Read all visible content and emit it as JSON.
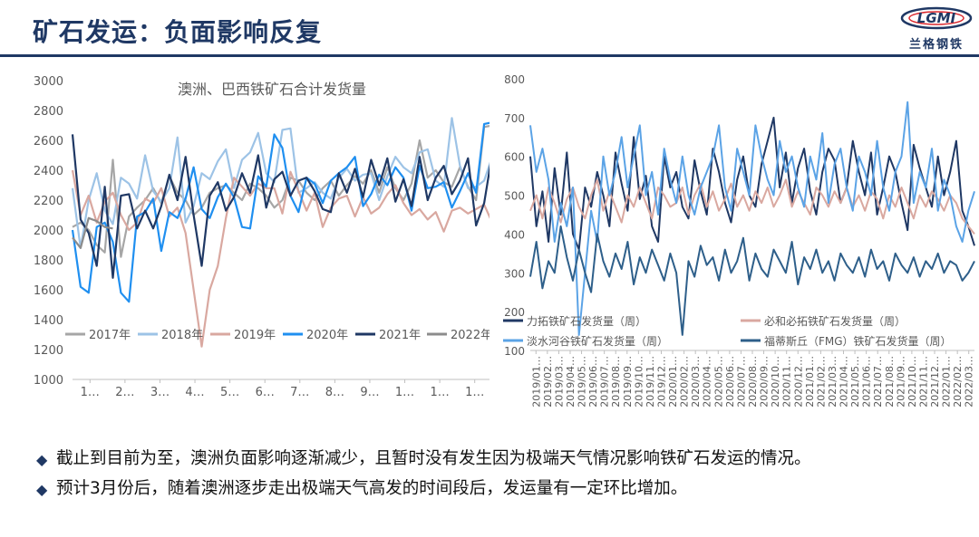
{
  "page": {
    "title": "矿石发运：负面影响反复",
    "logo_mark": "LGMI",
    "logo_text": "兰格钢铁"
  },
  "bullets": [
    {
      "icon": "diamond-icon",
      "text": "截止到目前为至，澳洲负面影响逐渐减少，且暂时没有发生因为极端天气情况影响铁矿石发运的情况。"
    },
    {
      "icon": "diamond-icon",
      "text": "预计3月份后，随着澳洲逐步走出极端天气高发的时间段后，发运量有一定环比增加。"
    }
  ],
  "chart_data": [
    {
      "type": "line",
      "title": "澳洲、巴西铁矿石合计发货量",
      "xlabel": "",
      "ylabel": "",
      "ylim": [
        1000,
        3000
      ],
      "yticks": [
        1000,
        1200,
        1400,
        1600,
        1800,
        2000,
        2200,
        2400,
        2600,
        2800,
        3000
      ],
      "x_tick_labels": [
        "1…",
        "2…",
        "3…",
        "4…",
        "5…",
        "6…",
        "7…",
        "8…",
        "9…",
        "1…",
        "1…",
        "1…"
      ],
      "grid": false,
      "legend": "bottom",
      "series": [
        {
          "name": "2017年",
          "color": "#a6a6a6",
          "values": [
            2020,
            2050,
            2000,
            1900,
            1850,
            2470,
            1820,
            2090,
            2150,
            2200,
            2280,
            2180,
            2360,
            2250,
            2200,
            2100,
            2150,
            2250,
            2280,
            2300,
            2250,
            2200,
            2310,
            2280,
            2230,
            2150,
            2200,
            2350,
            2330,
            2250,
            2200,
            2280,
            2330,
            2230,
            2300,
            2360,
            2310,
            2400,
            2250,
            2420,
            2280,
            2200,
            2310,
            2600,
            2350,
            2400,
            2320,
            2290,
            2420,
            2290,
            2200,
            2690,
            2700
          ]
        },
        {
          "name": "2018年",
          "color": "#9dc3e6",
          "values": [
            2280,
            1880,
            2200,
            2380,
            2130,
            2040,
            2350,
            2310,
            2210,
            2500,
            2260,
            2190,
            2280,
            2620,
            2050,
            2160,
            2380,
            2340,
            2460,
            2540,
            2280,
            2470,
            2520,
            2650,
            2380,
            2320,
            2670,
            2680,
            2250,
            2280,
            2320,
            2250,
            2210,
            2350,
            2410,
            2330,
            2370,
            2380,
            2200,
            2360,
            2490,
            2420,
            2380,
            2520,
            2540,
            2330,
            2290,
            2750,
            2430,
            2280,
            2290,
            2330,
            2490
          ]
        },
        {
          "name": "2019年",
          "color": "#d9a8a0",
          "values": [
            2400,
            2100,
            2230,
            2050,
            2190,
            2250,
            2100,
            2000,
            2050,
            2210,
            2180,
            2280,
            2090,
            2150,
            1980,
            1600,
            1220,
            1600,
            1760,
            2080,
            2350,
            2290,
            2230,
            2310,
            2280,
            2280,
            2110,
            2390,
            2260,
            2130,
            2250,
            2020,
            2150,
            2210,
            2230,
            2090,
            2220,
            2110,
            2150,
            2240,
            2300,
            2180,
            2100,
            2140,
            2070,
            2120,
            1990,
            2130,
            2150,
            2110,
            2140,
            2170,
            2050
          ]
        },
        {
          "name": "2020年",
          "color": "#1f8ff0",
          "values": [
            2000,
            1620,
            1580,
            2020,
            2050,
            1920,
            1580,
            1520,
            2090,
            2120,
            2210,
            1860,
            2120,
            2080,
            2210,
            2420,
            2140,
            2080,
            2220,
            2310,
            2220,
            2020,
            2010,
            2360,
            2290,
            2640,
            2550,
            2230,
            2120,
            2350,
            2310,
            2180,
            2330,
            2380,
            2420,
            2490,
            2160,
            2240,
            2370,
            2300,
            2420,
            2350,
            2130,
            2430,
            2280,
            2290,
            2320,
            2150,
            2260,
            2380,
            2250,
            2710,
            2720
          ]
        },
        {
          "name": "2021年",
          "color": "#1f3864",
          "values": [
            2640,
            2070,
            1980,
            1760,
            2290,
            1680,
            2230,
            2240,
            2010,
            2130,
            2010,
            2160,
            2370,
            2200,
            2490,
            2100,
            1760,
            2230,
            2320,
            2130,
            2220,
            2380,
            2250,
            2500,
            2150,
            2340,
            2390,
            2230,
            2330,
            2350,
            2260,
            2140,
            2120,
            2380,
            2250,
            2410,
            2220,
            2470,
            2300,
            2480,
            2190,
            2340,
            2160,
            2490,
            2200,
            2350,
            2430,
            2240,
            2330,
            2480,
            2030,
            2180,
            2510
          ]
        },
        {
          "name": "2022年",
          "color": "#8c8c8c",
          "values": [
            1950,
            1880,
            2080,
            2060,
            2020,
            2010
          ]
        }
      ]
    },
    {
      "type": "line",
      "title": "",
      "xlabel": "",
      "ylabel": "",
      "ylim": [
        100,
        800
      ],
      "yticks": [
        100,
        200,
        300,
        400,
        500,
        600,
        700,
        800
      ],
      "x_tick_labels": [
        "2019/01…",
        "2019/02…",
        "2019/03…",
        "2019/04…",
        "2019/05…",
        "2019/06…",
        "2019/07…",
        "2019/08…",
        "2019/09…",
        "2019/10…",
        "2019/11…",
        "2019/12…",
        "2020/01…",
        "2020/02…",
        "2020/03…",
        "2020/04…",
        "2020/05…",
        "2020/06…",
        "2020/07…",
        "2020/08…",
        "2020/09…",
        "2020/10…",
        "2020/11…",
        "2020/12…",
        "2021/01…",
        "2021/02…",
        "2021/03…",
        "2021/04…",
        "2021/05…",
        "2021/06…",
        "2021/07…",
        "2021/08…",
        "2021/09…",
        "2021/10…",
        "2021/11…",
        "2021/12…",
        "2022/01…",
        "2022/02…",
        "2022/03…"
      ],
      "grid": false,
      "legend": "bottom",
      "series": [
        {
          "name": "力拓铁矿石发货量（周）",
          "color": "#1f3864",
          "values": [
            600,
            420,
            510,
            380,
            570,
            450,
            610,
            400,
            360,
            520,
            470,
            560,
            500,
            420,
            610,
            530,
            460,
            650,
            490,
            550,
            420,
            380,
            600,
            520,
            560,
            470,
            440,
            590,
            510,
            450,
            620,
            560,
            480,
            430,
            540,
            600,
            500,
            470,
            580,
            640,
            700,
            520,
            610,
            480,
            570,
            620,
            510,
            450,
            560,
            620,
            590,
            480,
            520,
            640,
            560,
            500,
            610,
            450,
            520,
            600,
            560,
            480,
            410,
            630,
            570,
            520,
            470,
            600,
            500,
            560,
            640,
            460,
            420,
            370
          ]
        },
        {
          "name": "必和必拓铁矿石发货量（周）",
          "color": "#d9a8a0",
          "values": [
            460,
            500,
            440,
            520,
            480,
            430,
            490,
            520,
            470,
            440,
            500,
            540,
            460,
            510,
            470,
            430,
            500,
            470,
            520,
            480,
            440,
            520,
            500,
            470,
            480,
            520,
            450,
            500,
            530,
            470,
            510,
            460,
            490,
            530,
            470,
            500,
            460,
            510,
            480,
            520,
            470,
            500,
            540,
            470,
            510,
            480,
            450,
            520,
            500,
            470,
            510,
            480,
            520,
            470,
            500,
            460,
            510,
            490,
            440,
            500,
            470,
            520,
            480,
            440,
            500,
            470,
            510,
            490,
            460,
            500,
            480,
            440,
            420,
            400
          ]
        },
        {
          "name": "淡水河谷铁矿石发货量（周）",
          "color": "#5ba3e6",
          "values": [
            680,
            560,
            620,
            540,
            380,
            480,
            420,
            520,
            140,
            300,
            460,
            380,
            600,
            500,
            560,
            650,
            520,
            600,
            680,
            500,
            560,
            450,
            620,
            540,
            480,
            600,
            500,
            450,
            520,
            560,
            600,
            680,
            520,
            460,
            620,
            560,
            500,
            680,
            600,
            540,
            500,
            640,
            560,
            600,
            520,
            470,
            600,
            540,
            660,
            480,
            580,
            620,
            520,
            460,
            600,
            560,
            500,
            640,
            520,
            460,
            560,
            600,
            740,
            480,
            560,
            520,
            620,
            460,
            540,
            500,
            420,
            380,
            460,
            510
          ]
        },
        {
          "name": "福蒂斯丘（FMG）铁矿石发货量（周）",
          "color": "#2e5f8a",
          "values": [
            290,
            380,
            260,
            330,
            300,
            420,
            340,
            280,
            360,
            300,
            250,
            400,
            330,
            290,
            350,
            310,
            380,
            270,
            340,
            300,
            360,
            320,
            280,
            350,
            300,
            140,
            330,
            290,
            370,
            320,
            340,
            280,
            360,
            300,
            330,
            390,
            280,
            350,
            310,
            290,
            360,
            330,
            300,
            380,
            270,
            340,
            310,
            360,
            300,
            330,
            280,
            350,
            320,
            300,
            340,
            290,
            360,
            310,
            330,
            280,
            350,
            320,
            300,
            340,
            290,
            330,
            310,
            350,
            300,
            330,
            320,
            280,
            300,
            330
          ]
        }
      ]
    }
  ]
}
